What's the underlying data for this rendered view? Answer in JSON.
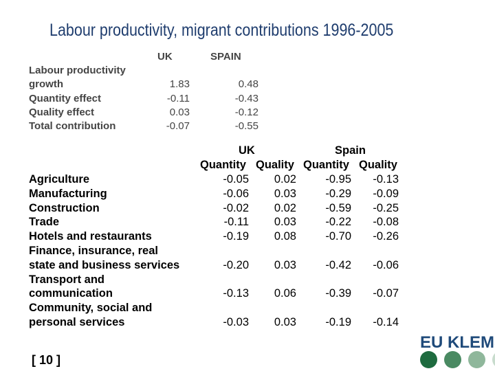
{
  "title": "Labour productivity, migrant contributions 1996-2005",
  "summary": {
    "headers": [
      "UK",
      "SPAIN"
    ],
    "rows": [
      {
        "label_lines": [
          "Labour productivity",
          "growth"
        ],
        "uk": "1.83",
        "spain": "0.48"
      },
      {
        "label_lines": [
          "Quantity effect"
        ],
        "uk": "-0.11",
        "spain": "-0.43"
      },
      {
        "label_lines": [
          "Quality effect"
        ],
        "uk": "0.03",
        "spain": "-0.12"
      },
      {
        "label_lines": [
          "Total contribution"
        ],
        "uk": "-0.07",
        "spain": "-0.55"
      }
    ]
  },
  "sector": {
    "group_headers": [
      "UK",
      "Spain"
    ],
    "sub_headers": [
      "Quantity",
      "Quality",
      "Quantity",
      "Quality"
    ],
    "rows": [
      {
        "label_lines": [
          "Agriculture"
        ],
        "values": [
          "-0.05",
          "0.02",
          "-0.95",
          "-0.13"
        ]
      },
      {
        "label_lines": [
          "Manufacturing"
        ],
        "values": [
          "-0.06",
          "0.03",
          "-0.29",
          "-0.09"
        ]
      },
      {
        "label_lines": [
          "Construction"
        ],
        "values": [
          "-0.02",
          "0.02",
          "-0.59",
          "-0.25"
        ]
      },
      {
        "label_lines": [
          "Trade"
        ],
        "values": [
          "-0.11",
          "0.03",
          "-0.22",
          "-0.08"
        ]
      },
      {
        "label_lines": [
          "Hotels and restaurants"
        ],
        "values": [
          "-0.19",
          "0.08",
          "-0.70",
          "-0.26"
        ]
      },
      {
        "label_lines": [
          "Finance, insurance, real",
          "state and business services"
        ],
        "values": [
          "-0.20",
          "0.03",
          "-0.42",
          "-0.06"
        ]
      },
      {
        "label_lines": [
          "Transport and",
          "communication"
        ],
        "values": [
          "-0.13",
          "0.06",
          "-0.39",
          "-0.07"
        ]
      },
      {
        "label_lines": [
          "Community, social and",
          "personal services"
        ],
        "values": [
          "-0.03",
          "0.03",
          "-0.19",
          "-0.14"
        ]
      }
    ]
  },
  "page_number": "[ 10 ]",
  "logo": {
    "text": "EU KLEMS",
    "dot_colors": [
      "#1e6b3f",
      "#4a8a62",
      "#8fb79b",
      "#c8dccd"
    ]
  }
}
